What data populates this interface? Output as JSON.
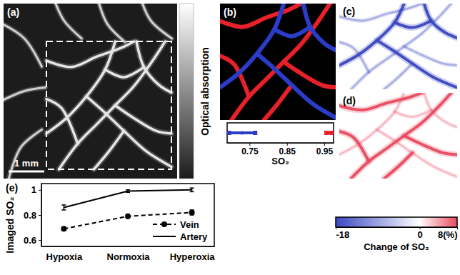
{
  "chart_data": [
    {
      "type": "image",
      "label": "(a)",
      "scale_bar": "1 mm",
      "colorbar": {
        "title": "Optical absorption"
      }
    },
    {
      "type": "errorbar",
      "label": "(b)",
      "xlabel": "SO₂",
      "xlim": [
        0.69,
        0.975
      ],
      "xticks": [
        0.75,
        0.85,
        0.95
      ],
      "series": [
        {
          "color": "#2a3cc8",
          "marker": "square",
          "x": [
            0.73
          ],
          "x_error": [
            0.035
          ]
        },
        {
          "color": "#e8202a",
          "marker": "square",
          "x": [
            0.963
          ],
          "x_error": [
            0.007
          ]
        }
      ]
    },
    {
      "type": "image",
      "label": "(c)"
    },
    {
      "type": "image",
      "label": "(d)"
    },
    {
      "type": "colorbar",
      "title": "Change of SO₂",
      "range": [
        -18,
        8
      ],
      "ticks": [
        -18,
        0,
        {
          "value": 8,
          "label": "8(%)"
        }
      ],
      "colors": [
        "#3a48c0",
        "#ffffff",
        "#e84a5f"
      ]
    },
    {
      "type": "line",
      "label": "(e)",
      "ylabel": "Imaged SO₂",
      "categories": [
        "Hypoxia",
        "Normoxia",
        "Hyperoxia"
      ],
      "ylim": [
        0.55,
        1.05
      ],
      "yticks": [
        0.6,
        0.8,
        1
      ],
      "legend": "lower right",
      "series": [
        {
          "name": "Vein",
          "color": "#000000",
          "line_style": "dashed",
          "marker": "circle",
          "values": [
            0.69,
            0.79,
            0.82
          ],
          "errors": [
            0.015,
            0.015,
            0.02
          ]
        },
        {
          "name": "Artery",
          "color": "#000000",
          "line_style": "solid",
          "marker": "none",
          "values": [
            0.86,
            0.99,
            1.0
          ],
          "errors": [
            0.02,
            0.01,
            0.015
          ]
        }
      ]
    }
  ]
}
